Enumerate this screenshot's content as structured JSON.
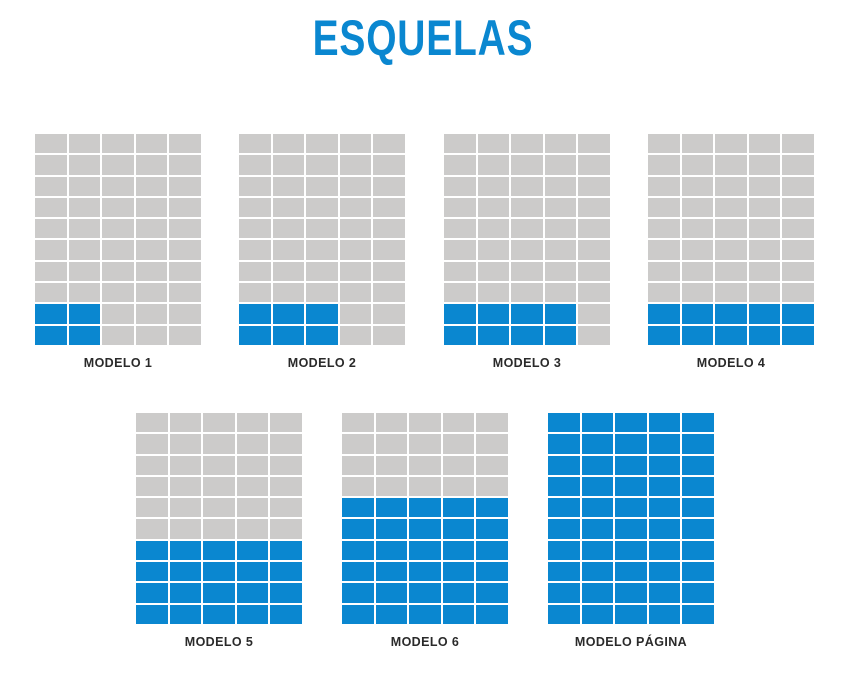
{
  "title": "ESQUELAS",
  "colors": {
    "accent": "#0a87d0",
    "empty": "#cccbca"
  },
  "grid": {
    "columns": 5,
    "rows": 10
  },
  "models": [
    {
      "label": "MODELO 1",
      "filled_cols": 2,
      "filled_rows": 2
    },
    {
      "label": "MODELO 2",
      "filled_cols": 3,
      "filled_rows": 2
    },
    {
      "label": "MODELO 3",
      "filled_cols": 4,
      "filled_rows": 2
    },
    {
      "label": "MODELO 4",
      "filled_cols": 5,
      "filled_rows": 2
    },
    {
      "label": "MODELO 5",
      "filled_cols": 5,
      "filled_rows": 4
    },
    {
      "label": "MODELO 6",
      "filled_cols": 5,
      "filled_rows": 6
    },
    {
      "label": "MODELO PÁGINA",
      "filled_cols": 5,
      "filled_rows": 10
    }
  ]
}
